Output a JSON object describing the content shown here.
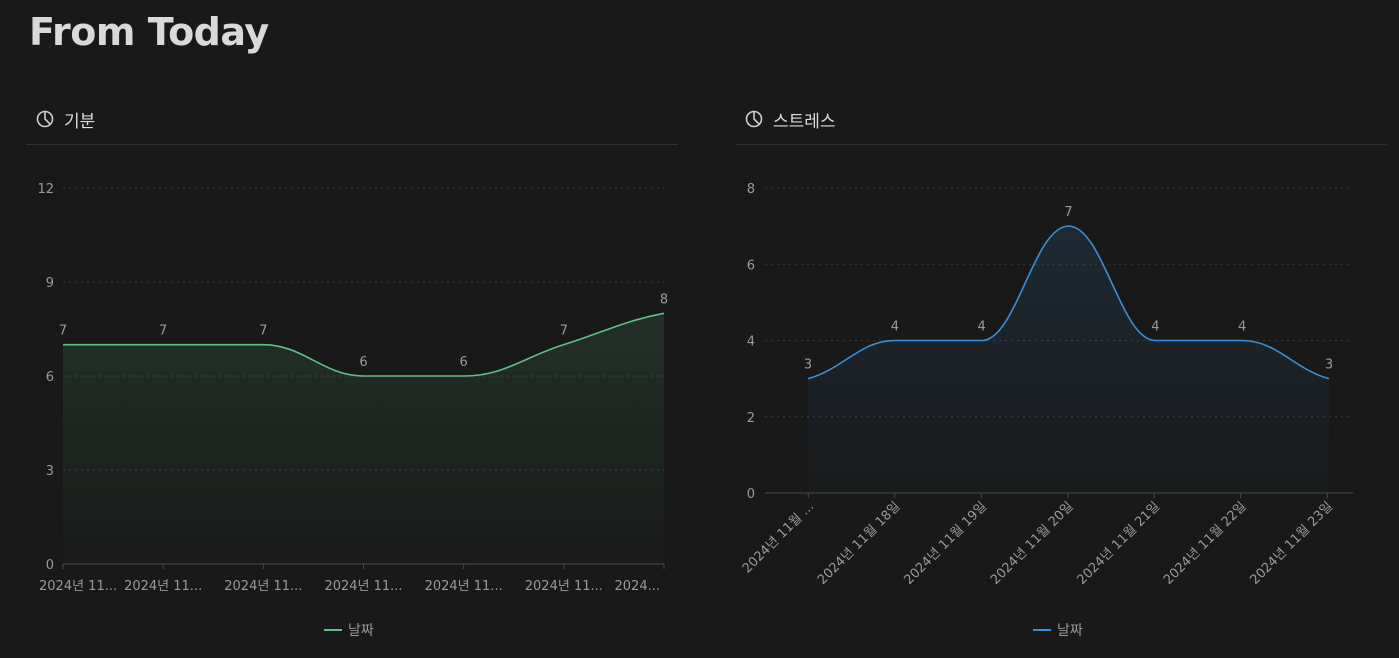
{
  "page": {
    "title": "From Today"
  },
  "chart_data": [
    {
      "type": "area",
      "panel_title": "기분",
      "icon": "pie-chart-icon",
      "color": "#5fbf87",
      "categories": [
        "2024년 11...",
        "2024년 11...",
        "2024년 11...",
        "2024년 11...",
        "2024년 11...",
        "2024년 11...",
        "2024..."
      ],
      "series": [
        {
          "name": "날짜",
          "values": [
            7,
            7,
            7,
            6,
            6,
            7,
            8
          ]
        }
      ],
      "ylim": [
        0,
        12
      ],
      "yticks": [
        "0",
        "3",
        "6",
        "9",
        "12"
      ],
      "grid": true,
      "legend": "bottom",
      "xlabel_rotation": 0
    },
    {
      "type": "area",
      "panel_title": "스트레스",
      "icon": "pie-chart-icon",
      "color": "#3a8fd9",
      "categories": [
        "2024년 11월 ...",
        "2024년 11월 18일",
        "2024년 11월 19일",
        "2024년 11월 20일",
        "2024년 11월 21일",
        "2024년 11월 22일",
        "2024년 11월 23일"
      ],
      "series": [
        {
          "name": "날짜",
          "values": [
            3,
            4,
            4,
            7,
            4,
            4,
            3
          ]
        }
      ],
      "ylim": [
        0,
        8
      ],
      "yticks": [
        "0",
        "2",
        "4",
        "6",
        "8"
      ],
      "grid": true,
      "legend": "bottom",
      "xlabel_rotation": -45
    }
  ]
}
